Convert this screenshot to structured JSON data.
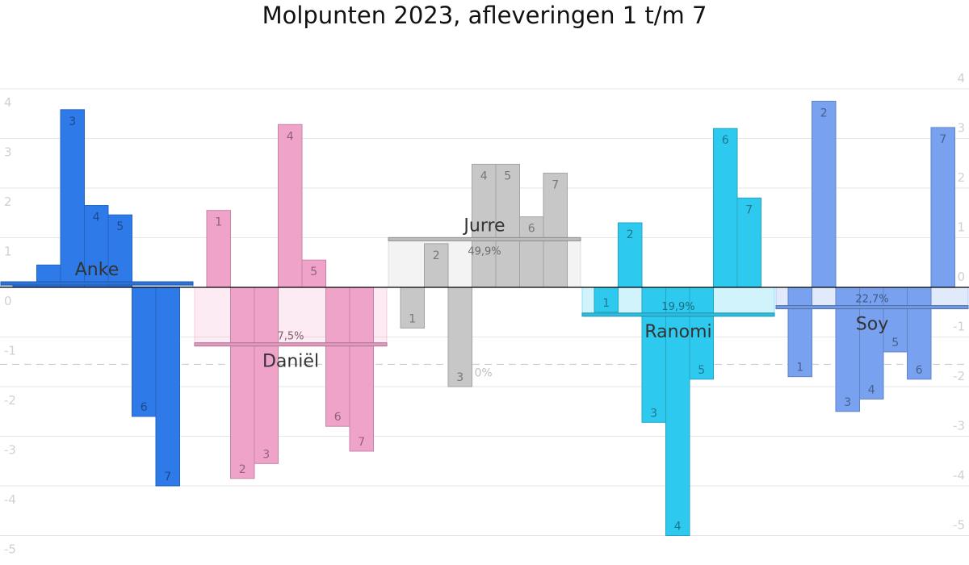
{
  "chart_data": {
    "type": "bar",
    "title": "Molpunten 2023, afleveringen 1 t/m 7",
    "xlabel": "",
    "ylabel": "",
    "ylim": [
      -5,
      4
    ],
    "yticks": [
      -5,
      -4,
      -3,
      -2,
      -1,
      0,
      1,
      2,
      3,
      4
    ],
    "grid": true,
    "reference_line": -1.55,
    "series": [
      {
        "name": "Anke",
        "color": "#2e7ae8",
        "labels": [
          "",
          "",
          "3",
          "4",
          "5",
          "6",
          "7"
        ],
        "values": [
          0.05,
          0.45,
          3.58,
          1.65,
          1.46,
          -2.6,
          -4.0
        ],
        "average": 0.08,
        "percentage": ""
      },
      {
        "name": "Daniël",
        "color": "#f0a3c9",
        "labels": [
          "1",
          "2",
          "3",
          "4",
          "5",
          "6",
          "7"
        ],
        "values": [
          1.55,
          -3.85,
          -3.55,
          3.28,
          0.55,
          -2.8,
          -3.3
        ],
        "average": -1.15,
        "percentage": "7,5%"
      },
      {
        "name": "Jurre",
        "color": "#c7c7c7",
        "labels": [
          "1",
          "2",
          "3",
          "4",
          "5",
          "6",
          "7"
        ],
        "values": [
          -0.82,
          0.88,
          -2.0,
          2.48,
          2.48,
          1.42,
          2.3
        ],
        "average": 0.97,
        "percentage": "49,9%",
        "extra_label": "0%"
      },
      {
        "name": "Ranomi",
        "color": "#2ec9ee",
        "labels": [
          "1",
          "2",
          "3",
          "4",
          "5",
          "6",
          "7"
        ],
        "values": [
          -0.5,
          1.3,
          -2.72,
          -5.0,
          -1.85,
          3.2,
          1.8
        ],
        "average": -0.55,
        "percentage": "19,9%"
      },
      {
        "name": "Soy",
        "color": "#78a1ef",
        "labels": [
          "1",
          "2",
          "3",
          "4",
          "5",
          "6",
          "7"
        ],
        "values": [
          -1.8,
          3.75,
          -2.5,
          -2.25,
          -1.3,
          -1.85,
          3.22
        ],
        "average": -0.4,
        "percentage": "22,7%"
      }
    ]
  }
}
